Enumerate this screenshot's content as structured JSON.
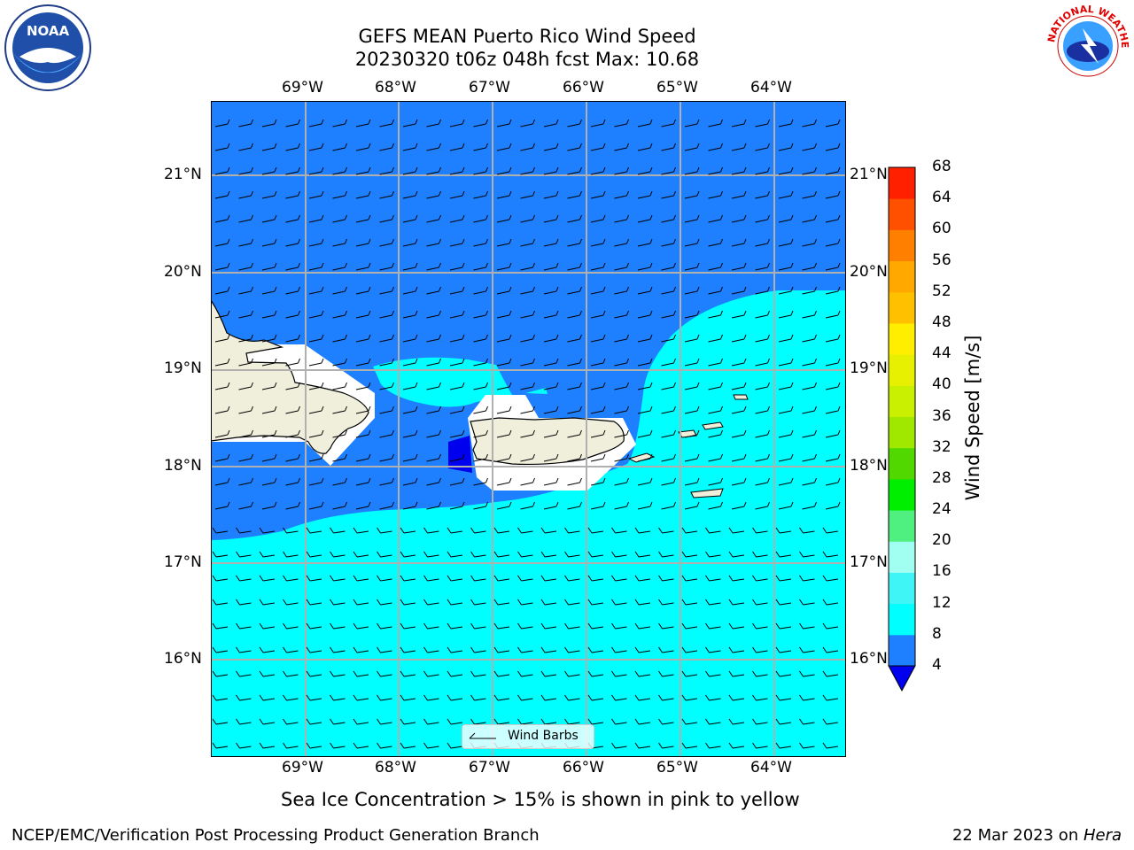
{
  "header": {
    "title_line1": "GEFS MEAN Puerto Rico Wind Speed",
    "title_line2": "20230320 t06z 048h fcst   Max: 10.68"
  },
  "logos": {
    "noaa_text": "NOAA",
    "nws_text": "NATIONAL WEATHER SERVICE"
  },
  "map": {
    "lon_labels": [
      "69°W",
      "68°W",
      "67°W",
      "66°W",
      "65°W",
      "64°W"
    ],
    "lat_labels": [
      "21°N",
      "20°N",
      "19°N",
      "18°N",
      "17°N",
      "16°N"
    ],
    "legend_label": "Wind Barbs",
    "colors": {
      "ocean_dark": "#1e7fff",
      "ocean_light": "#00ffff",
      "land": "#efefdc",
      "grid": "#b0b0b0"
    }
  },
  "colorbar": {
    "label": "Wind Speed [m/s]",
    "ticks": [
      "4",
      "8",
      "12",
      "16",
      "20",
      "24",
      "28",
      "32",
      "36",
      "40",
      "44",
      "48",
      "52",
      "56",
      "60",
      "64",
      "68"
    ],
    "colors": [
      "#0000ee",
      "#1e7fff",
      "#00ffff",
      "#40f5f5",
      "#a0fff0",
      "#50f080",
      "#00ee00",
      "#50d800",
      "#a0e800",
      "#c8f000",
      "#e6f000",
      "#ffee00",
      "#ffc000",
      "#ffa800",
      "#ff8000",
      "#ff5000",
      "#ff2000",
      "#ff0000"
    ]
  },
  "caption": "Sea Ice Concentration > 15% is shown in pink to yellow",
  "footer": {
    "left": "NCEP/EMC/Verification Post Processing Product Generation Branch",
    "right_prefix": "22 Mar 2023 on ",
    "right_host": "Hera"
  }
}
